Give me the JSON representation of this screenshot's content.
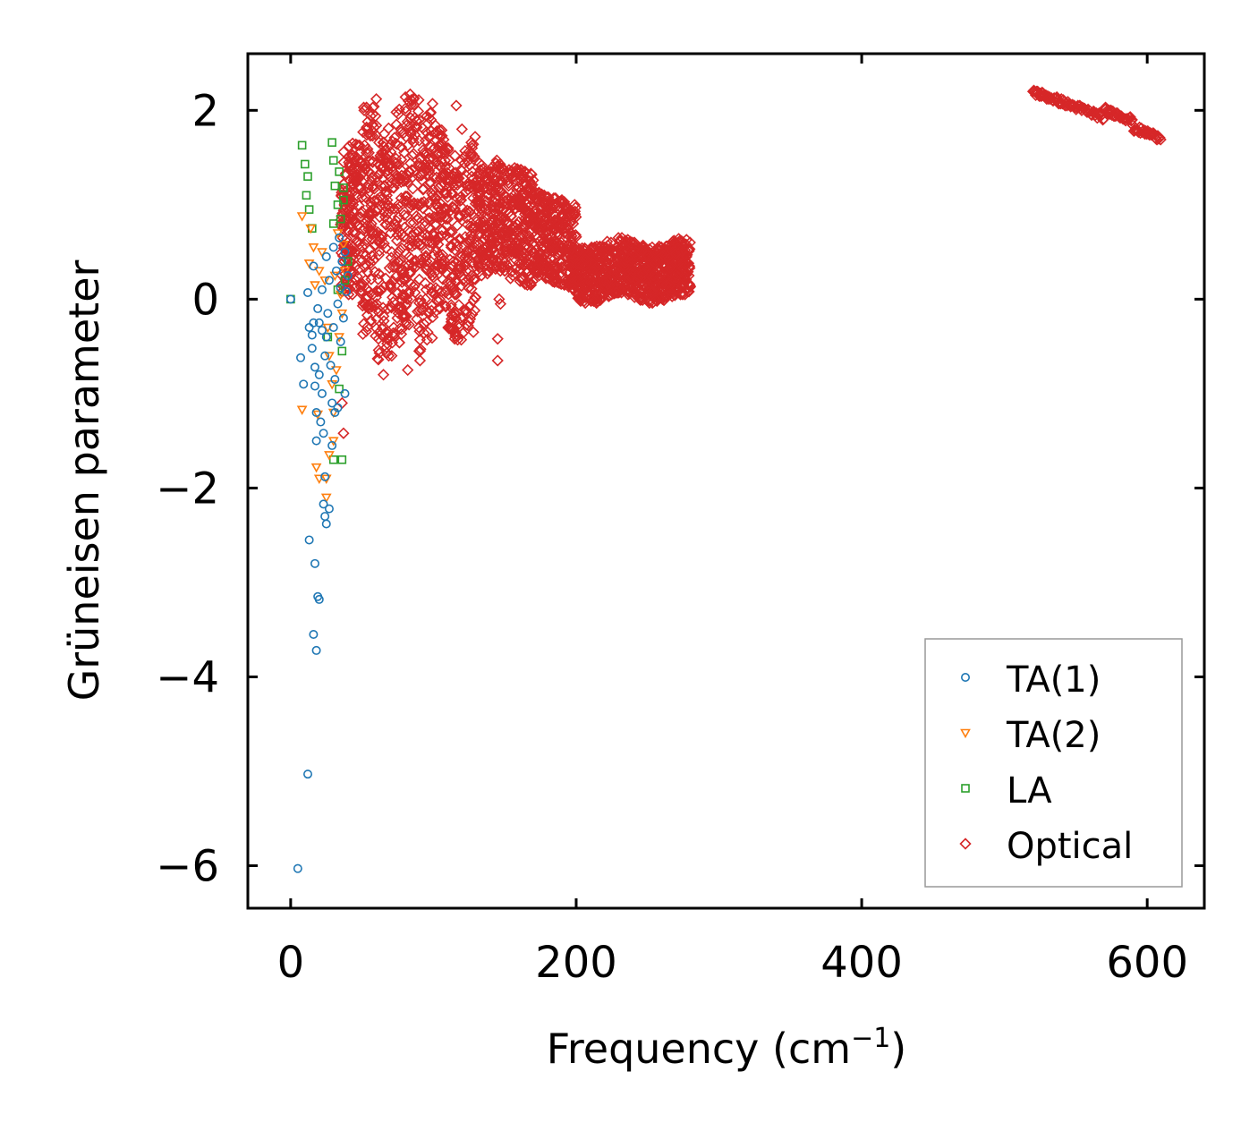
{
  "chart_data": {
    "type": "scatter",
    "xlabel": "Frequency (cm",
    "xlabel_sup": "−1",
    "xlabel_close": ")",
    "ylabel": "Grüneisen parameter",
    "xlim": [
      -30,
      640
    ],
    "ylim": [
      -6.45,
      2.6
    ],
    "xticks": [
      0,
      200,
      400,
      600
    ],
    "xtick_labels": [
      "0",
      "200",
      "400",
      "600"
    ],
    "yticks": [
      2,
      0,
      -2,
      -4,
      -6
    ],
    "ytick_labels": [
      "2",
      "0",
      "−2",
      "−4",
      "−6"
    ],
    "legend_position": "lower-right",
    "series": [
      {
        "name": "TA(1)",
        "marker": "circle",
        "color": "#1f77b4",
        "points": [
          [
            0,
            0
          ],
          [
            7,
            -0.62
          ],
          [
            12,
            0.07
          ],
          [
            13,
            -0.3
          ],
          [
            15,
            -0.52
          ],
          [
            15,
            -0.38
          ],
          [
            16,
            0.35
          ],
          [
            17,
            -0.72
          ],
          [
            17,
            -0.92
          ],
          [
            18,
            -1.2
          ],
          [
            18,
            -1.5
          ],
          [
            19,
            -0.1
          ],
          [
            20,
            -0.25
          ],
          [
            20,
            -0.8
          ],
          [
            21,
            -1.3
          ],
          [
            22,
            0.1
          ],
          [
            22,
            -1.0
          ],
          [
            23,
            -1.42
          ],
          [
            24,
            -0.6
          ],
          [
            25,
            0.45
          ],
          [
            25,
            -0.4
          ],
          [
            26,
            -0.15
          ],
          [
            27,
            0.2
          ],
          [
            28,
            -0.7
          ],
          [
            29,
            -1.1
          ],
          [
            30,
            0.55
          ],
          [
            30,
            -0.3
          ],
          [
            31,
            -0.85
          ],
          [
            32,
            0.3
          ],
          [
            33,
            -0.05
          ],
          [
            33,
            -1.15
          ],
          [
            34,
            0.65
          ],
          [
            35,
            0.12
          ],
          [
            35,
            -0.45
          ],
          [
            36,
            0.4
          ],
          [
            37,
            -0.2
          ],
          [
            38,
            0.5
          ],
          [
            39,
            0.08
          ],
          [
            40,
            0.25
          ],
          [
            38,
            -1.0
          ],
          [
            5,
            -6.03
          ],
          [
            12,
            -5.03
          ],
          [
            16,
            -3.55
          ],
          [
            18,
            -3.72
          ],
          [
            20,
            -3.18
          ],
          [
            19,
            -3.15
          ],
          [
            17,
            -2.8
          ],
          [
            13,
            -2.55
          ],
          [
            25,
            -2.38
          ],
          [
            24,
            -2.3
          ],
          [
            23,
            -2.17
          ],
          [
            27,
            -2.22
          ],
          [
            24,
            -1.88
          ],
          [
            29,
            -1.55
          ],
          [
            31,
            -1.2
          ],
          [
            9,
            -0.9
          ],
          [
            16,
            -0.25
          ],
          [
            22,
            -0.33
          ]
        ]
      },
      {
        "name": "TA(2)",
        "marker": "triangle-down",
        "color": "#ff7f0e",
        "points": [
          [
            8,
            0.88
          ],
          [
            14,
            0.75
          ],
          [
            16,
            0.55
          ],
          [
            13,
            0.38
          ],
          [
            17,
            0.15
          ],
          [
            20,
            0.3
          ],
          [
            22,
            0.5
          ],
          [
            24,
            0.2
          ],
          [
            26,
            -0.3
          ],
          [
            27,
            -0.6
          ],
          [
            29,
            -0.9
          ],
          [
            30,
            -1.2
          ],
          [
            32,
            -0.75
          ],
          [
            34,
            -0.4
          ],
          [
            35,
            0.05
          ],
          [
            36,
            -0.15
          ],
          [
            38,
            0.3
          ],
          [
            30,
            -1.5
          ],
          [
            27,
            -1.65
          ],
          [
            25,
            -1.9
          ],
          [
            20,
            -1.9
          ],
          [
            25,
            -2.1
          ],
          [
            18,
            -1.78
          ],
          [
            8,
            -1.17
          ],
          [
            19,
            -1.22
          ],
          [
            33,
            0.7
          ],
          [
            37,
            0.58
          ],
          [
            31,
            0.25
          ]
        ]
      },
      {
        "name": "LA",
        "marker": "square",
        "color": "#2ca02c",
        "points": [
          [
            0,
            0
          ],
          [
            8,
            1.63
          ],
          [
            29,
            1.66
          ],
          [
            11,
            1.1
          ],
          [
            13,
            0.95
          ],
          [
            30,
            1.47
          ],
          [
            10,
            1.43
          ],
          [
            12,
            1.3
          ],
          [
            34,
            1.35
          ],
          [
            37,
            1.18
          ],
          [
            31,
            1.2
          ],
          [
            33,
            1.0
          ],
          [
            35,
            0.85
          ],
          [
            37,
            1.05
          ],
          [
            40,
            0.4
          ],
          [
            38,
            0.2
          ],
          [
            36,
            -0.55
          ],
          [
            34,
            -0.95
          ],
          [
            36,
            -1.7
          ],
          [
            30,
            -1.7
          ],
          [
            15,
            0.75
          ],
          [
            30,
            0.8
          ],
          [
            26,
            -0.4
          ],
          [
            33,
            0.1
          ]
        ]
      },
      {
        "name": "Optical",
        "marker": "diamond",
        "color": "#d62728",
        "points": []
      }
    ]
  },
  "legend": [
    "TA(1)",
    "TA(2)",
    "LA",
    "Optical"
  ]
}
